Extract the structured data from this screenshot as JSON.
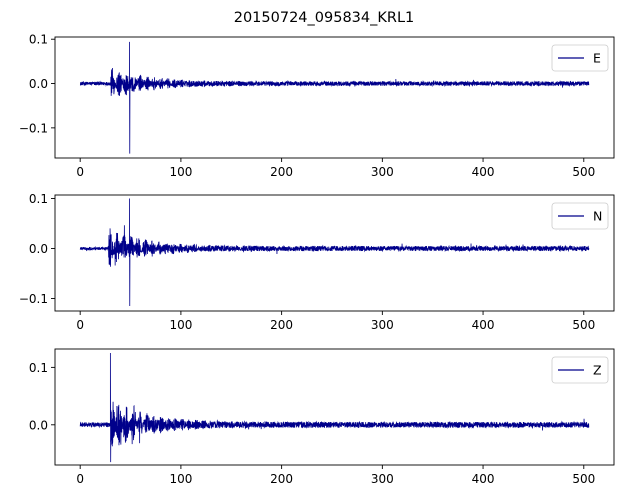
{
  "chart_data": {
    "type": "line",
    "title": "20150724_095834_KRL1",
    "xlabel": "",
    "ylabel": "",
    "grid": false,
    "line_color": "#00008b",
    "xticks": [
      "0",
      "100",
      "200",
      "300",
      "400",
      "500"
    ],
    "panels": [
      {
        "series_name": "E",
        "legend_position": "top-right",
        "xlim": [
          -25,
          530
        ],
        "ylim": [
          -0.168,
          0.105
        ],
        "yticks": [
          "0.1",
          "0.0",
          "−0.1"
        ],
        "x_range": [
          0,
          505
        ],
        "onset_x": 30,
        "spike_x": 49,
        "spike_min": -0.158,
        "spike_max": 0.094,
        "pre_event_amplitude": 0.004,
        "coda_peak_amplitude": 0.035,
        "background_amplitude": 0.005
      },
      {
        "series_name": "N",
        "legend_position": "top-right",
        "xlim": [
          -25,
          530
        ],
        "ylim": [
          -0.125,
          0.107
        ],
        "yticks": [
          "0.1",
          "0.0",
          "−0.1"
        ],
        "x_range": [
          0,
          505
        ],
        "onset_x": 28,
        "spike_x": 49,
        "spike_min": -0.115,
        "spike_max": 0.1,
        "pre_event_amplitude": 0.003,
        "coda_peak_amplitude": 0.04,
        "background_amplitude": 0.005
      },
      {
        "series_name": "Z",
        "legend_position": "top-right",
        "xlim": [
          -25,
          530
        ],
        "ylim": [
          -0.07,
          0.132
        ],
        "yticks": [
          "0.1",
          "0.0"
        ],
        "x_range": [
          0,
          505
        ],
        "onset_x": 30,
        "spike_x": 30,
        "spike_min": -0.065,
        "spike_max": 0.125,
        "pre_event_amplitude": 0.004,
        "coda_peak_amplitude": 0.045,
        "background_amplitude": 0.005
      }
    ]
  }
}
